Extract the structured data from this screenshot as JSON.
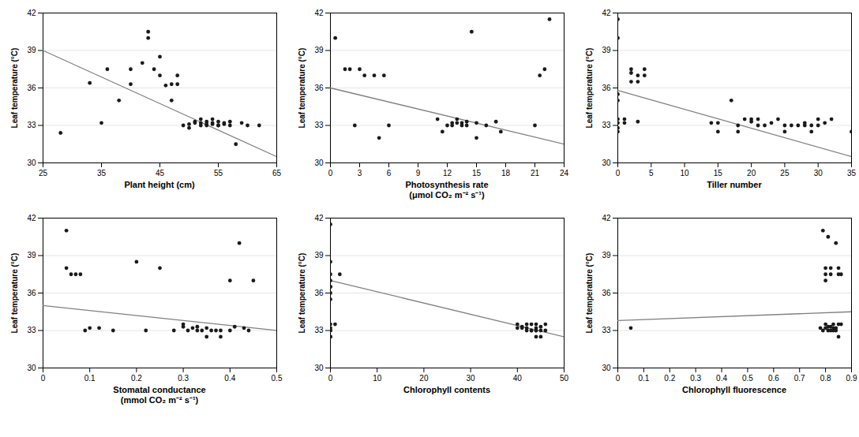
{
  "chart_data": [
    {
      "type": "scatter",
      "xlabel": "Plant height (cm)",
      "ylabel": "Leaf temperature (°C)",
      "xlim": [
        25,
        65
      ],
      "xticks": [
        25,
        35,
        45,
        55,
        65
      ],
      "ylim": [
        30,
        42
      ],
      "yticks": [
        30,
        33,
        36,
        39,
        42
      ],
      "grid": "y",
      "series": [
        {
          "type": "scatter",
          "color": "#1a1a1a",
          "x": [
            28,
            33,
            35,
            36,
            38,
            40,
            40,
            42,
            43,
            43,
            44,
            45,
            45,
            46,
            47,
            47,
            48,
            48,
            49,
            50,
            50,
            51,
            51,
            52,
            52,
            52,
            53,
            53,
            53,
            54,
            54,
            54,
            55,
            55,
            55,
            56,
            56,
            57,
            57,
            58,
            59,
            60,
            62
          ],
          "values": [
            32.4,
            36.4,
            33.2,
            37.5,
            35.0,
            37.5,
            36.3,
            38.0,
            40.5,
            40.0,
            37.5,
            37.0,
            38.5,
            36.2,
            36.3,
            35.0,
            37.0,
            36.3,
            33.0,
            32.8,
            33.1,
            33.2,
            33.3,
            33.5,
            33.0,
            33.2,
            33.3,
            33.1,
            33.0,
            33.5,
            33.2,
            33.1,
            33.0,
            33.0,
            33.3,
            33.2,
            33.1,
            33.3,
            33.0,
            31.5,
            33.2,
            33.0,
            33.0
          ]
        },
        {
          "type": "line",
          "color": "#808080",
          "x": [
            25,
            65
          ],
          "values": [
            39.0,
            30.5
          ]
        }
      ]
    },
    {
      "type": "scatter",
      "xlabel": "Photosynthesis rate\n(μmol CO₂ m⁻² s⁻¹)",
      "ylabel": "Leaf temperature (°C)",
      "xlim": [
        0,
        24
      ],
      "xticks": [
        0,
        3,
        6,
        9,
        12,
        15,
        18,
        21,
        24
      ],
      "ylim": [
        30,
        42
      ],
      "yticks": [
        30,
        33,
        36,
        39,
        42
      ],
      "grid": "y",
      "series": [
        {
          "type": "scatter",
          "color": "#1a1a1a",
          "x": [
            0.5,
            1.5,
            2.0,
            2.5,
            3.0,
            3.5,
            4.5,
            5.0,
            5.5,
            6.0,
            11.0,
            11.5,
            12.0,
            12.5,
            12.5,
            13.0,
            13.0,
            13.5,
            13.5,
            14.0,
            14.0,
            14.5,
            15.0,
            15.0,
            16.0,
            17.0,
            17.5,
            21.0,
            21.5,
            22.0,
            22.5
          ],
          "values": [
            40.0,
            37.5,
            37.5,
            33.0,
            37.5,
            37.0,
            37.0,
            32.0,
            37.0,
            33.0,
            33.5,
            32.5,
            33.0,
            33.2,
            33.0,
            33.5,
            33.2,
            33.0,
            33.2,
            33.0,
            33.3,
            40.5,
            32.0,
            33.2,
            33.0,
            33.3,
            32.5,
            33.0,
            37.0,
            37.5,
            41.5
          ]
        },
        {
          "type": "line",
          "color": "#808080",
          "x": [
            0,
            24
          ],
          "values": [
            36.0,
            31.5
          ]
        }
      ]
    },
    {
      "type": "scatter",
      "xlabel": "Tiller number",
      "ylabel": "Leaf temperature (°C)",
      "xlim": [
        0,
        35
      ],
      "xticks": [
        0,
        5,
        10,
        15,
        20,
        25,
        30,
        35
      ],
      "ylim": [
        30,
        42
      ],
      "yticks": [
        30,
        33,
        36,
        39,
        42
      ],
      "grid": "y",
      "series": [
        {
          "type": "scatter",
          "color": "#1a1a1a",
          "x": [
            0,
            0,
            0,
            0,
            0,
            0,
            0,
            0,
            1,
            1,
            2,
            2,
            2,
            3,
            3,
            3,
            4,
            4,
            14,
            15,
            15,
            17,
            18,
            18,
            19,
            20,
            20,
            21,
            21,
            22,
            23,
            24,
            25,
            25,
            26,
            27,
            28,
            28,
            29,
            29,
            30,
            30,
            31,
            32,
            35
          ],
          "values": [
            41.5,
            40.0,
            35.5,
            35.0,
            33.5,
            33.2,
            32.8,
            32.5,
            33.5,
            33.2,
            37.5,
            37.2,
            36.5,
            37.0,
            36.5,
            33.3,
            37.5,
            37.0,
            33.2,
            33.2,
            32.5,
            35.0,
            33.0,
            32.5,
            33.5,
            33.3,
            33.5,
            33.5,
            33.0,
            33.0,
            33.2,
            33.5,
            33.0,
            32.5,
            33.0,
            33.0,
            33.0,
            33.2,
            32.5,
            33.0,
            33.5,
            33.0,
            33.2,
            33.5,
            32.5
          ]
        },
        {
          "type": "line",
          "color": "#808080",
          "x": [
            0,
            35
          ],
          "values": [
            35.8,
            30.5
          ]
        }
      ]
    },
    {
      "type": "scatter",
      "xlabel": "Stomatal conductance\n(mmol CO₂ m⁻² s⁻¹)",
      "ylabel": "Leaf temperature (°C)",
      "xlim": [
        0,
        0.5
      ],
      "xticks": [
        0,
        0.1,
        0.2,
        0.3,
        0.4,
        0.5
      ],
      "ylim": [
        30,
        42
      ],
      "yticks": [
        30,
        33,
        36,
        39,
        42
      ],
      "grid": "y",
      "series": [
        {
          "type": "scatter",
          "color": "#1a1a1a",
          "x": [
            0.05,
            0.05,
            0.06,
            0.07,
            0.08,
            0.09,
            0.1,
            0.12,
            0.15,
            0.2,
            0.22,
            0.25,
            0.28,
            0.3,
            0.3,
            0.31,
            0.32,
            0.33,
            0.33,
            0.34,
            0.35,
            0.35,
            0.36,
            0.37,
            0.38,
            0.38,
            0.4,
            0.4,
            0.41,
            0.42,
            0.43,
            0.44,
            0.45
          ],
          "values": [
            41.0,
            38.0,
            37.5,
            37.5,
            37.5,
            33.0,
            33.2,
            33.2,
            33.0,
            38.5,
            33.0,
            38.0,
            33.0,
            33.3,
            33.5,
            33.0,
            33.2,
            33.0,
            33.3,
            33.0,
            32.5,
            33.2,
            33.0,
            33.0,
            32.5,
            33.0,
            37.0,
            33.0,
            33.3,
            40.0,
            33.2,
            33.0,
            37.0
          ]
        },
        {
          "type": "line",
          "color": "#808080",
          "x": [
            0,
            0.5
          ],
          "values": [
            35.0,
            33.0
          ]
        }
      ]
    },
    {
      "type": "scatter",
      "xlabel": "Chlorophyll contents",
      "ylabel": "Leaf temperature (°C)",
      "xlim": [
        0,
        50
      ],
      "xticks": [
        0,
        10,
        20,
        30,
        40,
        50
      ],
      "ylim": [
        30,
        42
      ],
      "yticks": [
        30,
        33,
        36,
        39,
        42
      ],
      "grid": "y",
      "series": [
        {
          "type": "scatter",
          "color": "#1a1a1a",
          "x": [
            0,
            0,
            0,
            0,
            0,
            0,
            0,
            0,
            0,
            0,
            0,
            0,
            0,
            0,
            1,
            2,
            40,
            40,
            41,
            41,
            42,
            42,
            42,
            43,
            43,
            43,
            44,
            44,
            44,
            44,
            44,
            45,
            45,
            45,
            46,
            46
          ],
          "values": [
            41.5,
            38.5,
            37.5,
            37.0,
            36.5,
            36.5,
            36.0,
            35.5,
            33.5,
            33.2,
            33.0,
            33.0,
            32.5,
            32.5,
            33.5,
            37.5,
            33.5,
            33.2,
            33.3,
            33.2,
            33.5,
            33.2,
            33.0,
            33.5,
            33.0,
            33.0,
            33.5,
            33.2,
            33.0,
            33.0,
            32.5,
            33.3,
            33.0,
            32.5,
            33.5,
            33.0
          ]
        },
        {
          "type": "line",
          "color": "#808080",
          "x": [
            0,
            50
          ],
          "values": [
            37.0,
            32.5
          ]
        }
      ]
    },
    {
      "type": "scatter",
      "xlabel": "Chlorophyll fluorescence",
      "ylabel": "Leaf temperature (°C)",
      "xlim": [
        0,
        0.9
      ],
      "xticks": [
        0,
        0.1,
        0.2,
        0.3,
        0.4,
        0.5,
        0.6,
        0.7,
        0.8,
        0.9
      ],
      "ylim": [
        30,
        42
      ],
      "yticks": [
        30,
        33,
        36,
        39,
        42
      ],
      "grid": "y",
      "series": [
        {
          "type": "scatter",
          "color": "#1a1a1a",
          "x": [
            0.05,
            0.78,
            0.79,
            0.79,
            0.8,
            0.8,
            0.8,
            0.8,
            0.8,
            0.81,
            0.81,
            0.81,
            0.82,
            0.82,
            0.82,
            0.82,
            0.83,
            0.83,
            0.83,
            0.84,
            0.84,
            0.84,
            0.85,
            0.85,
            0.85,
            0.85,
            0.86,
            0.86
          ],
          "values": [
            33.2,
            33.2,
            33.0,
            41.0,
            38.0,
            37.5,
            37.0,
            33.5,
            33.2,
            40.5,
            33.3,
            33.0,
            38.0,
            37.5,
            33.3,
            33.0,
            33.5,
            33.2,
            33.0,
            40.0,
            33.2,
            33.0,
            32.5,
            38.0,
            37.5,
            33.5,
            37.5,
            33.5
          ]
        },
        {
          "type": "line",
          "color": "#808080",
          "x": [
            0,
            0.9
          ],
          "values": [
            33.8,
            34.5
          ]
        }
      ]
    }
  ]
}
